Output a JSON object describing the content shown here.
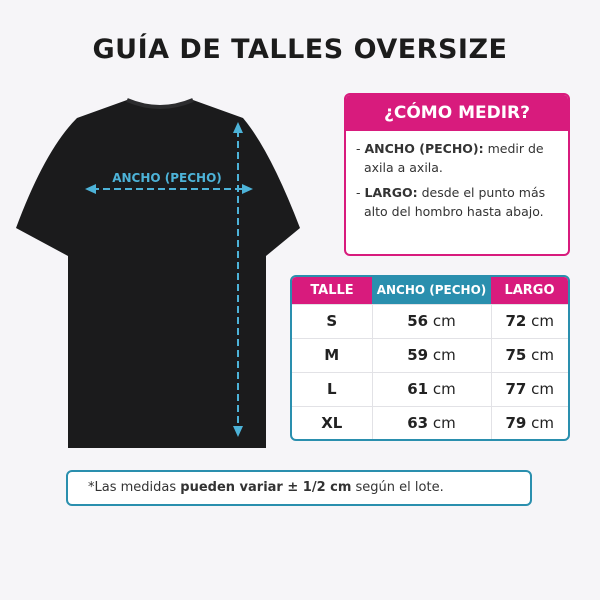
{
  "title": "GUÍA DE TALLES OVERSIZE",
  "diagram": {
    "width_label": "ANCHO (PECHO)"
  },
  "how_to": {
    "title": "¿CÓMO MEDIR?",
    "items": [
      {
        "bullet": "- ",
        "term": "ANCHO (PECHO):",
        "text": " medir de axila a axila."
      },
      {
        "bullet": "- ",
        "term": "LARGO:",
        "text": " desde el punto más alto del hombro hasta abajo."
      }
    ]
  },
  "table": {
    "headers": [
      "TALLE",
      "ANCHO (PECHO)",
      "LARGO"
    ],
    "unit": "cm",
    "rows": [
      {
        "size": "S",
        "width": "56",
        "length": "72"
      },
      {
        "size": "M",
        "width": "59",
        "length": "75"
      },
      {
        "size": "L",
        "width": "61",
        "length": "77"
      },
      {
        "size": "XL",
        "width": "63",
        "length": "79"
      }
    ]
  },
  "note": {
    "pre": "*Las medidas ",
    "bold": "pueden variar ± 1/2 cm",
    "post": " según el lote."
  },
  "colors": {
    "pink": "#d81b7d",
    "teal": "#2a8fae",
    "arrow": "#4db3d8"
  }
}
